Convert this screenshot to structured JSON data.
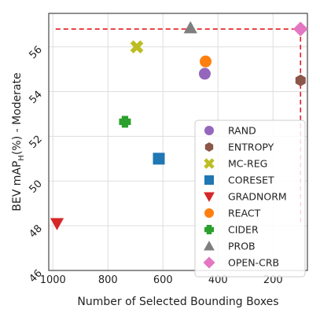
{
  "chart_data": {
    "type": "scatter",
    "xlabel": "Number of Selected Bounding Boxes",
    "ylabel_main": "BEV mAP",
    "ylabel_sub": "H",
    "ylabel_rest": "(%) - Moderate",
    "xlim": [
      1015,
      75
    ],
    "ylim": [
      46,
      57.5
    ],
    "x_ticks": [
      1000,
      800,
      600,
      400,
      200
    ],
    "y_ticks": [
      46,
      48,
      50,
      52,
      54,
      56
    ],
    "grid": true,
    "legend_position": "lower-right",
    "series": [
      {
        "name": "RAND",
        "color": "#9467bd",
        "marker": "circle",
        "points": [
          [
            448,
            54.8
          ]
        ]
      },
      {
        "name": "ENTROPY",
        "color": "#8c564b",
        "marker": "hexagon",
        "points": [
          [
            100,
            54.5
          ]
        ]
      },
      {
        "name": "MC-REG",
        "color": "#bcbd22",
        "marker": "x",
        "points": [
          [
            695,
            56.0
          ]
        ]
      },
      {
        "name": "CORESET",
        "color": "#1f77b4",
        "marker": "square",
        "points": [
          [
            615,
            51.0
          ]
        ]
      },
      {
        "name": "GRADNORM",
        "color": "#d62728",
        "marker": "triangle-down",
        "points": [
          [
            985,
            48.1
          ]
        ]
      },
      {
        "name": "REACT",
        "color": "#ff7f0e",
        "marker": "circle",
        "points": [
          [
            445,
            55.35
          ]
        ]
      },
      {
        "name": "CIDER",
        "color": "#2ca02c",
        "marker": "plus",
        "points": [
          [
            738,
            52.65
          ]
        ]
      },
      {
        "name": "PROB",
        "color": "#7f7f7f",
        "marker": "triangle-up",
        "points": [
          [
            500,
            56.85
          ]
        ]
      },
      {
        "name": "OPEN-CRB",
        "color": "#e377c2",
        "marker": "diamond",
        "points": [
          [
            100,
            56.8
          ]
        ]
      }
    ],
    "reference_lines": {
      "color": "#e41a1c",
      "y_value": 56.8,
      "x_from": 990,
      "x_value": 100,
      "y_to": 48.0
    }
  }
}
